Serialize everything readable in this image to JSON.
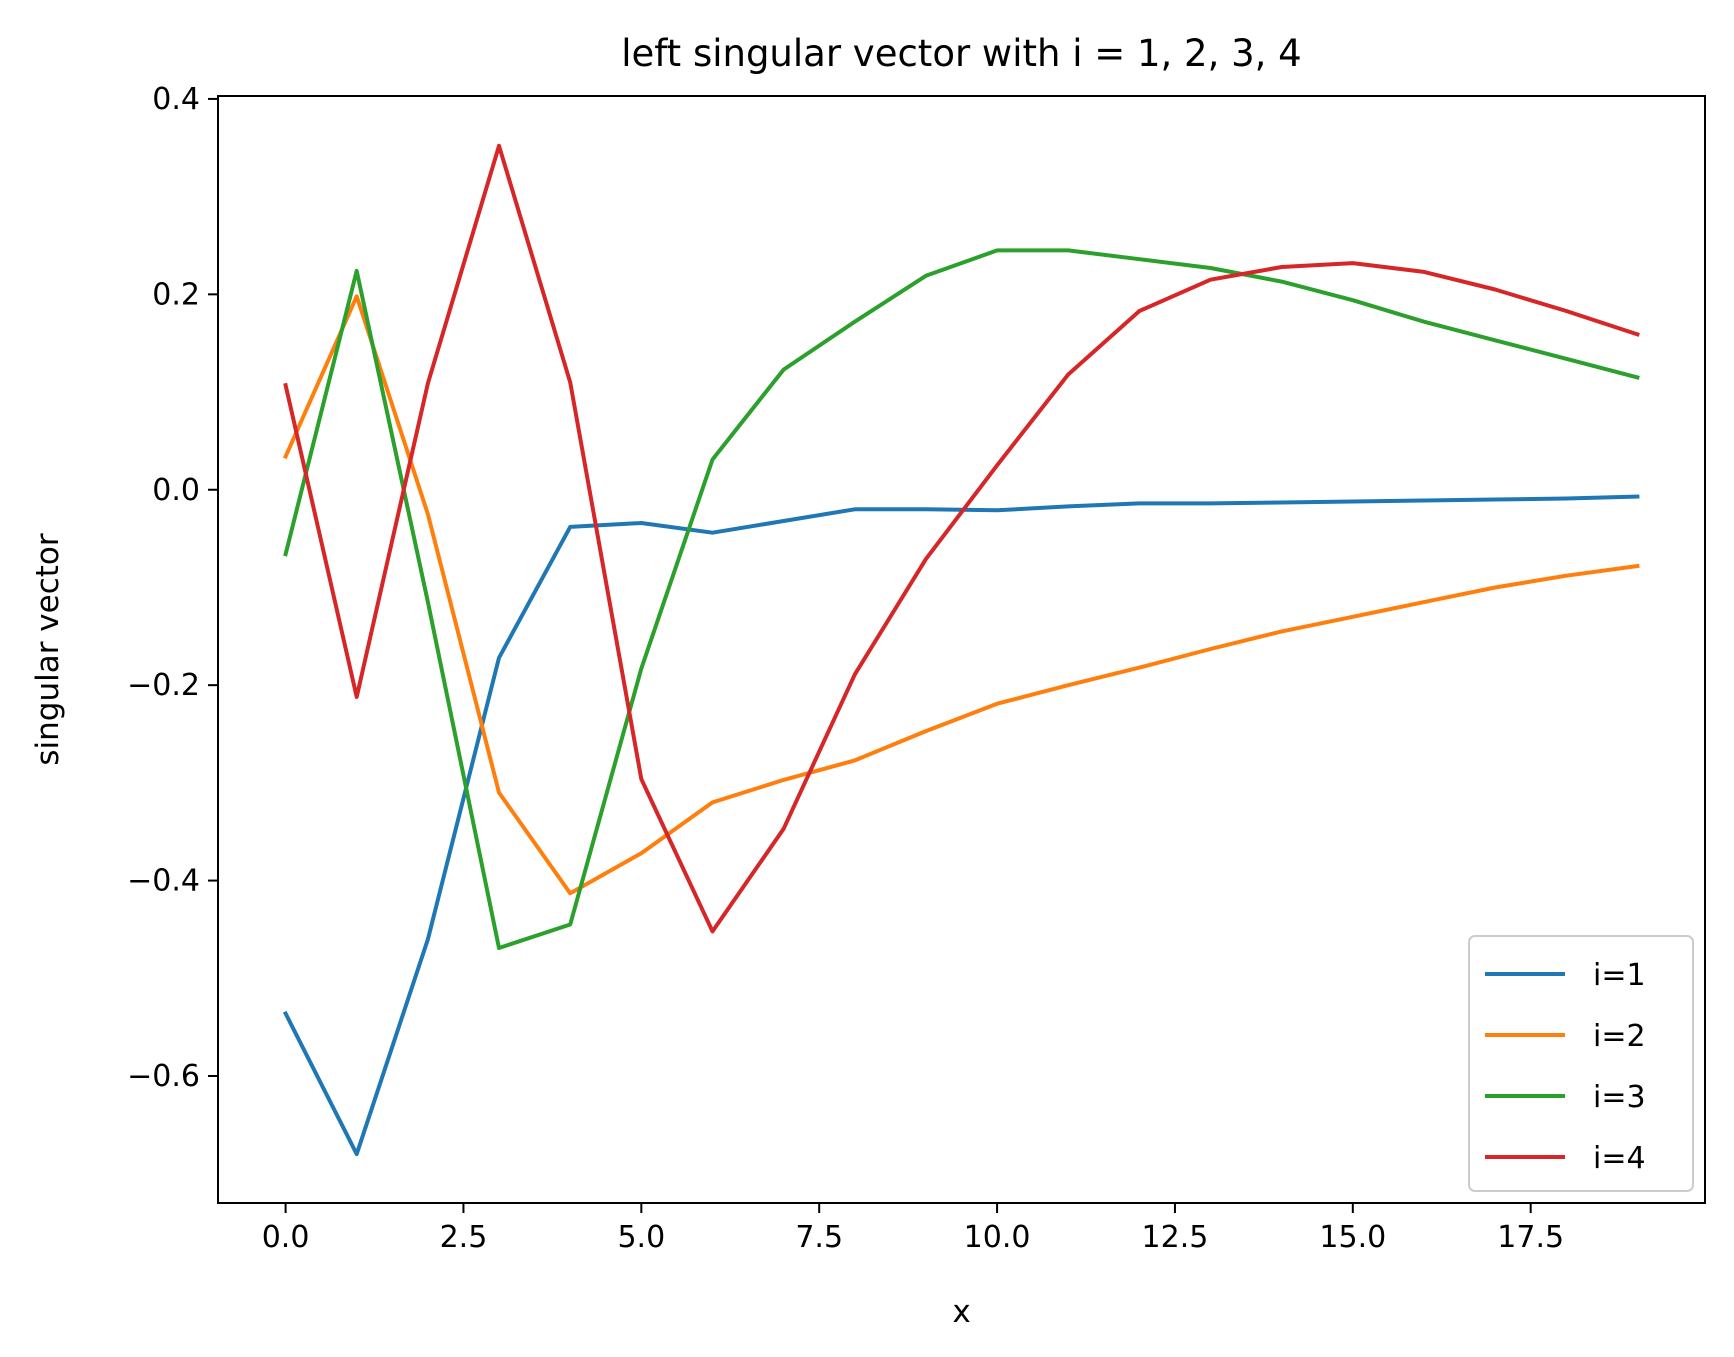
{
  "chart_data": {
    "type": "line",
    "title": "left singular vector with i = 1, 2, 3, 4",
    "xlabel": "x",
    "ylabel": "singular vector",
    "xlim": [
      -0.95,
      19.95
    ],
    "ylim": [
      -0.73,
      0.403
    ],
    "xticks": [
      0.0,
      2.5,
      5.0,
      7.5,
      10.0,
      12.5,
      15.0,
      17.5
    ],
    "xtick_labels": [
      "0.0",
      "2.5",
      "5.0",
      "7.5",
      "10.0",
      "12.5",
      "15.0",
      "17.5"
    ],
    "yticks": [
      -0.6,
      -0.4,
      -0.2,
      0.0,
      0.2,
      0.4
    ],
    "ytick_labels": [
      "−0.6",
      "−0.4",
      "−0.2",
      "0.0",
      "0.2",
      "0.4"
    ],
    "grid": false,
    "legend_position": "lower-right",
    "x": [
      0,
      1,
      2,
      3,
      4,
      5,
      6,
      7,
      8,
      9,
      10,
      11,
      12,
      13,
      14,
      15,
      16,
      17,
      18,
      19
    ],
    "series": [
      {
        "name": "i=1",
        "color": "#1f77b4",
        "values": [
          -0.536,
          -0.68,
          -0.46,
          -0.172,
          -0.038,
          -0.034,
          -0.044,
          -0.032,
          -0.02,
          -0.02,
          -0.021,
          -0.017,
          -0.014,
          -0.014,
          -0.013,
          -0.012,
          -0.011,
          -0.01,
          -0.009,
          -0.007
        ]
      },
      {
        "name": "i=2",
        "color": "#ff7f0e",
        "values": [
          0.034,
          0.198,
          -0.025,
          -0.31,
          -0.413,
          -0.372,
          -0.32,
          -0.297,
          -0.277,
          -0.247,
          -0.219,
          -0.2,
          -0.182,
          -0.163,
          -0.145,
          -0.13,
          -0.115,
          -0.1,
          -0.088,
          -0.078
        ]
      },
      {
        "name": "i=3",
        "color": "#2ca02c",
        "values": [
          -0.066,
          0.224,
          -0.115,
          -0.469,
          -0.445,
          -0.183,
          0.031,
          0.123,
          0.172,
          0.219,
          0.245,
          0.245,
          0.236,
          0.227,
          0.213,
          0.194,
          0.172,
          0.153,
          0.134,
          0.115
        ]
      },
      {
        "name": "i=4",
        "color": "#d62728",
        "values": [
          0.107,
          -0.212,
          0.109,
          0.352,
          0.11,
          -0.296,
          -0.452,
          -0.347,
          -0.189,
          -0.071,
          0.025,
          0.118,
          0.183,
          0.215,
          0.228,
          0.232,
          0.223,
          0.205,
          0.183,
          0.159
        ]
      }
    ]
  }
}
